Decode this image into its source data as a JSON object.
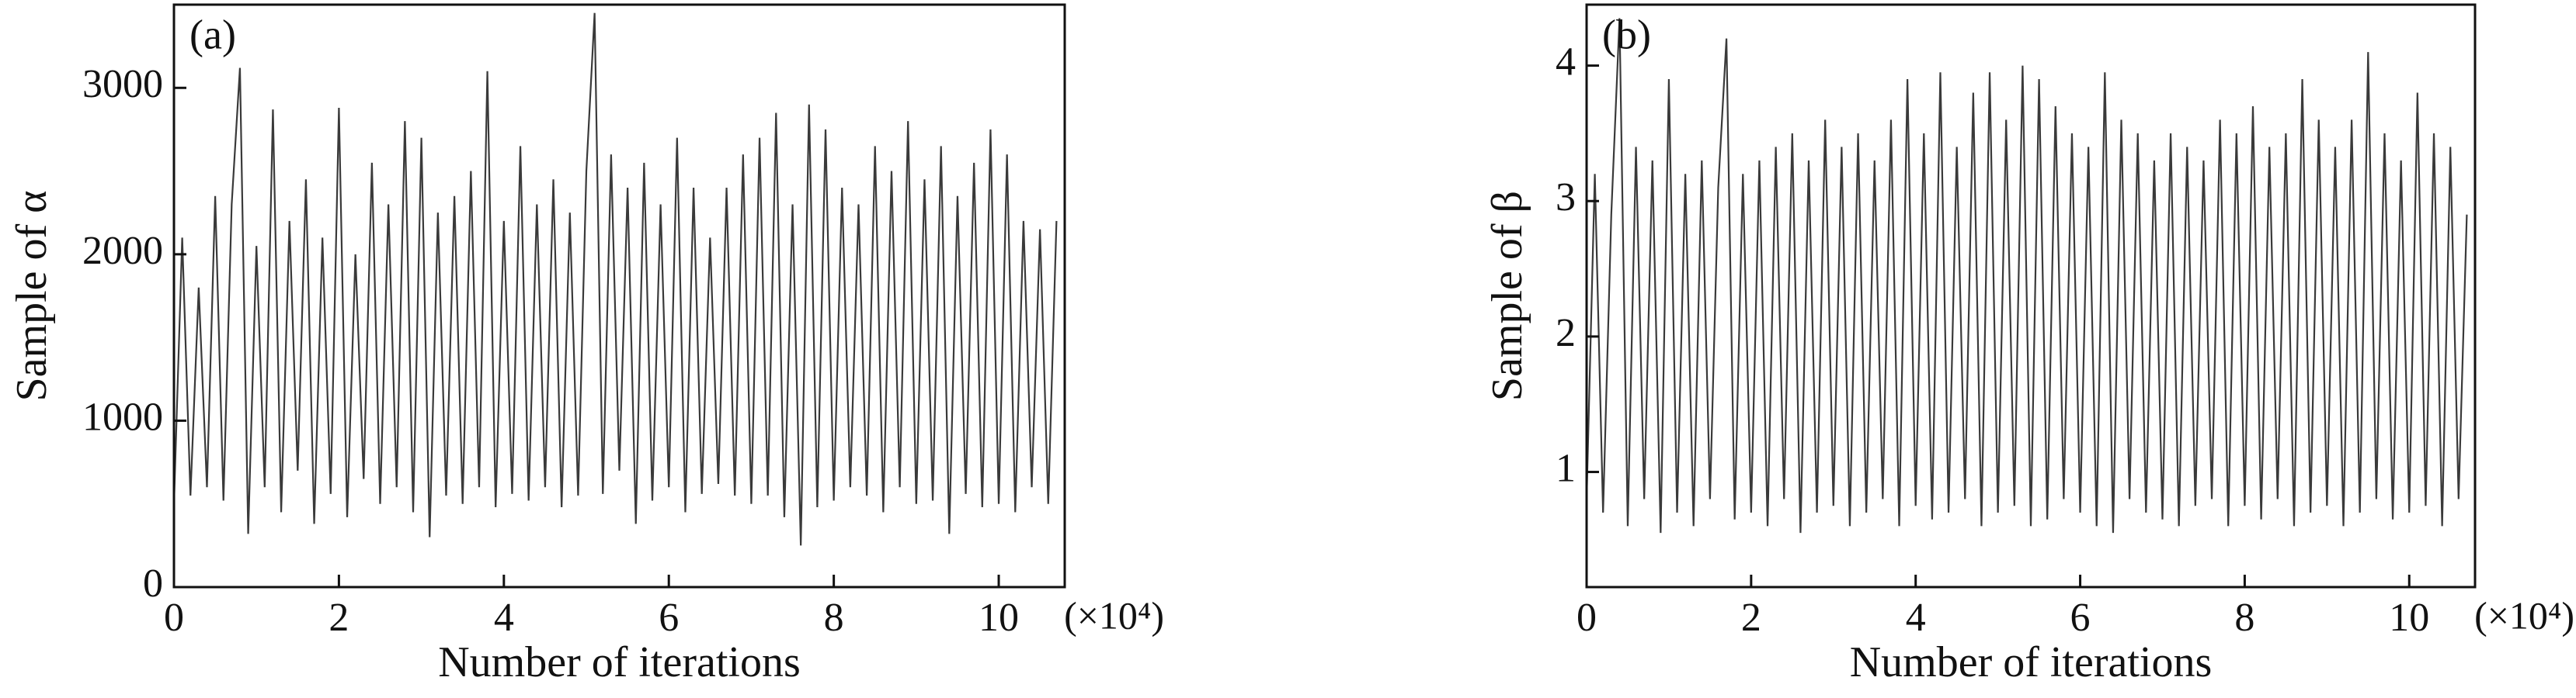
{
  "chart_data": [
    {
      "type": "line",
      "panel_label": "(a)",
      "y_label": "Sample of α",
      "x_label": "Number of iterations",
      "x_unit": "(×10⁴)",
      "color": "#3a3a3a",
      "xlim": [
        0,
        10.8
      ],
      "xticks": [
        0,
        2,
        4,
        6,
        8,
        10
      ],
      "ylim": [
        0,
        3500
      ],
      "yticks": [
        0,
        1000,
        2000,
        3000
      ],
      "x": [
        0,
        0.1,
        0.2,
        0.3,
        0.4,
        0.5,
        0.6,
        0.7,
        0.8,
        0.9,
        1,
        1.1,
        1.2,
        1.3,
        1.4,
        1.5,
        1.6,
        1.7,
        1.8,
        1.9,
        2,
        2.1,
        2.2,
        2.3,
        2.4,
        2.5,
        2.6,
        2.7,
        2.8,
        2.9,
        3,
        3.1,
        3.2,
        3.3,
        3.4,
        3.5,
        3.6,
        3.7,
        3.8,
        3.9,
        4,
        4.1,
        4.2,
        4.3,
        4.4,
        4.5,
        4.6,
        4.7,
        4.8,
        4.9,
        5,
        5.1,
        5.2,
        5.3,
        5.4,
        5.5,
        5.6,
        5.7,
        5.8,
        5.9,
        6,
        6.1,
        6.2,
        6.3,
        6.4,
        6.5,
        6.6,
        6.7,
        6.8,
        6.9,
        7,
        7.1,
        7.2,
        7.3,
        7.4,
        7.5,
        7.6,
        7.7,
        7.8,
        7.9,
        8,
        8.1,
        8.2,
        8.3,
        8.4,
        8.5,
        8.6,
        8.7,
        8.8,
        8.9,
        9,
        9.1,
        9.2,
        9.3,
        9.4,
        9.5,
        9.6,
        9.7,
        9.8,
        9.9,
        10,
        10.1,
        10.2,
        10.3,
        10.4,
        10.5,
        10.6,
        10.7
      ],
      "values": [
        500,
        2100,
        550,
        1800,
        600,
        2350,
        520,
        2300,
        3120,
        320,
        2050,
        600,
        2870,
        450,
        2200,
        700,
        2450,
        380,
        2100,
        560,
        2880,
        420,
        2000,
        650,
        2550,
        500,
        2300,
        600,
        2800,
        450,
        2700,
        300,
        2250,
        550,
        2350,
        500,
        2500,
        600,
        3100,
        480,
        2200,
        560,
        2650,
        520,
        2300,
        600,
        2450,
        480,
        2250,
        550,
        2500,
        3450,
        560,
        2600,
        700,
        2400,
        380,
        2550,
        520,
        2300,
        600,
        2700,
        450,
        2400,
        560,
        2100,
        620,
        2400,
        550,
        2600,
        500,
        2700,
        550,
        2850,
        420,
        2300,
        250,
        2900,
        480,
        2750,
        520,
        2400,
        600,
        2300,
        550,
        2650,
        450,
        2500,
        600,
        2800,
        500,
        2450,
        520,
        2650,
        320,
        2350,
        560,
        2550,
        480,
        2750,
        500,
        2600,
        450,
        2200,
        600,
        2150,
        500,
        2200
      ]
    },
    {
      "type": "line",
      "panel_label": "(b)",
      "y_label": "Sample of β",
      "x_label": "Number of iterations",
      "x_unit": "(×10⁴)",
      "color": "#3a3a3a",
      "xlim": [
        0,
        10.8
      ],
      "xticks": [
        0,
        2,
        4,
        6,
        8,
        10
      ],
      "ylim": [
        0.15,
        4.45
      ],
      "yticks": [
        1,
        2,
        3,
        4
      ],
      "x": [
        0,
        0.1,
        0.2,
        0.3,
        0.4,
        0.5,
        0.6,
        0.7,
        0.8,
        0.9,
        1,
        1.1,
        1.2,
        1.3,
        1.4,
        1.5,
        1.6,
        1.7,
        1.8,
        1.9,
        2,
        2.1,
        2.2,
        2.3,
        2.4,
        2.5,
        2.6,
        2.7,
        2.8,
        2.9,
        3,
        3.1,
        3.2,
        3.3,
        3.4,
        3.5,
        3.6,
        3.7,
        3.8,
        3.9,
        4,
        4.1,
        4.2,
        4.3,
        4.4,
        4.5,
        4.6,
        4.7,
        4.8,
        4.9,
        5,
        5.1,
        5.2,
        5.3,
        5.4,
        5.5,
        5.6,
        5.7,
        5.8,
        5.9,
        6,
        6.1,
        6.2,
        6.3,
        6.4,
        6.5,
        6.6,
        6.7,
        6.8,
        6.9,
        7,
        7.1,
        7.2,
        7.3,
        7.4,
        7.5,
        7.6,
        7.7,
        7.8,
        7.9,
        8,
        8.1,
        8.2,
        8.3,
        8.4,
        8.5,
        8.6,
        8.7,
        8.8,
        8.9,
        9,
        9.1,
        9.2,
        9.3,
        9.4,
        9.5,
        9.6,
        9.7,
        9.8,
        9.9,
        10,
        10.1,
        10.2,
        10.3,
        10.4,
        10.5,
        10.6,
        10.7
      ],
      "values": [
        0.8,
        3.2,
        0.7,
        2.9,
        4.35,
        0.6,
        3.4,
        0.8,
        3.3,
        0.55,
        3.9,
        0.7,
        3.2,
        0.6,
        3.3,
        0.8,
        3.1,
        4.2,
        0.65,
        3.2,
        0.7,
        3.3,
        0.6,
        3.4,
        0.8,
        3.5,
        0.55,
        3.3,
        0.7,
        3.6,
        0.75,
        3.4,
        0.6,
        3.5,
        0.7,
        3.3,
        0.8,
        3.6,
        0.6,
        3.9,
        0.75,
        3.5,
        0.65,
        3.95,
        0.7,
        3.4,
        0.8,
        3.8,
        0.6,
        3.95,
        0.7,
        3.6,
        0.75,
        4.0,
        0.6,
        3.9,
        0.65,
        3.7,
        0.8,
        3.5,
        0.7,
        3.4,
        0.6,
        3.95,
        0.55,
        3.6,
        0.8,
        3.5,
        0.7,
        3.3,
        0.65,
        3.5,
        0.6,
        3.4,
        0.75,
        3.3,
        0.8,
        3.6,
        0.6,
        3.5,
        0.75,
        3.7,
        0.65,
        3.4,
        0.8,
        3.5,
        0.6,
        3.9,
        0.7,
        3.6,
        0.75,
        3.4,
        0.6,
        3.6,
        0.7,
        4.1,
        0.8,
        3.5,
        0.65,
        3.3,
        0.7,
        3.8,
        0.75,
        3.5,
        0.6,
        3.4,
        0.8,
        2.9
      ]
    }
  ]
}
